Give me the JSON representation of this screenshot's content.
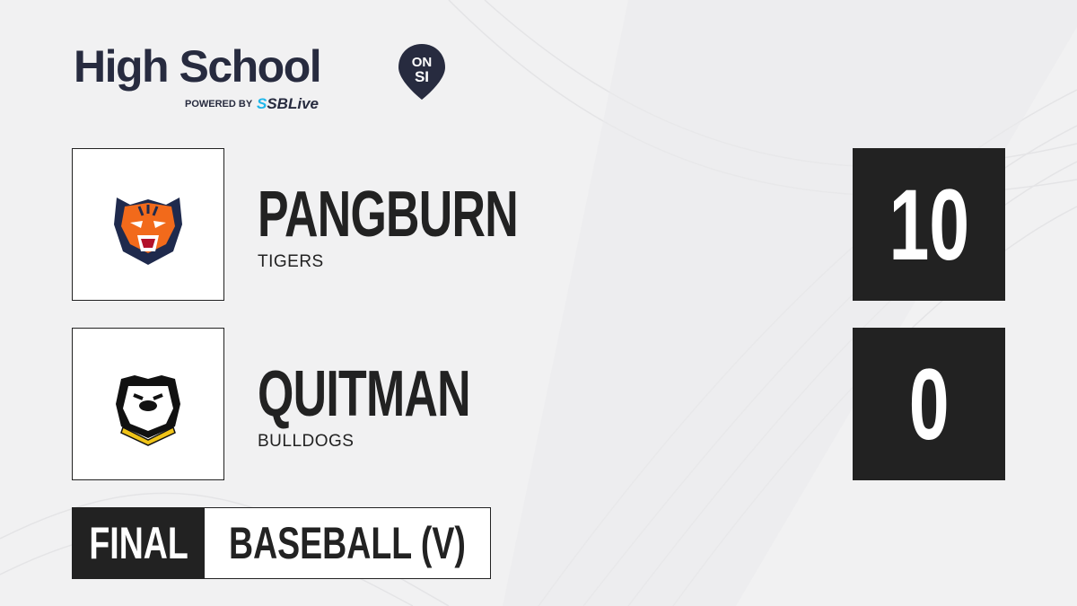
{
  "brand": {
    "title": "High School",
    "pin_top": "ON",
    "pin_bottom": "SI",
    "powered_by": "POWERED BY",
    "partner_prefix": "S",
    "partner": "SBLive",
    "colors": {
      "navy": "#272b3f",
      "cyan": "#1eb6ea"
    }
  },
  "teams": [
    {
      "name": "PANGBURN",
      "mascot": "TIGERS",
      "score": "10",
      "logo_icon": "tiger-icon"
    },
    {
      "name": "QUITMAN",
      "mascot": "BULLDOGS",
      "score": "0",
      "logo_icon": "bulldog-icon"
    }
  ],
  "status": {
    "label": "FINAL",
    "sport": "BASEBALL (V)"
  },
  "colors": {
    "dark": "#222222",
    "background": "#f1f1f2"
  }
}
